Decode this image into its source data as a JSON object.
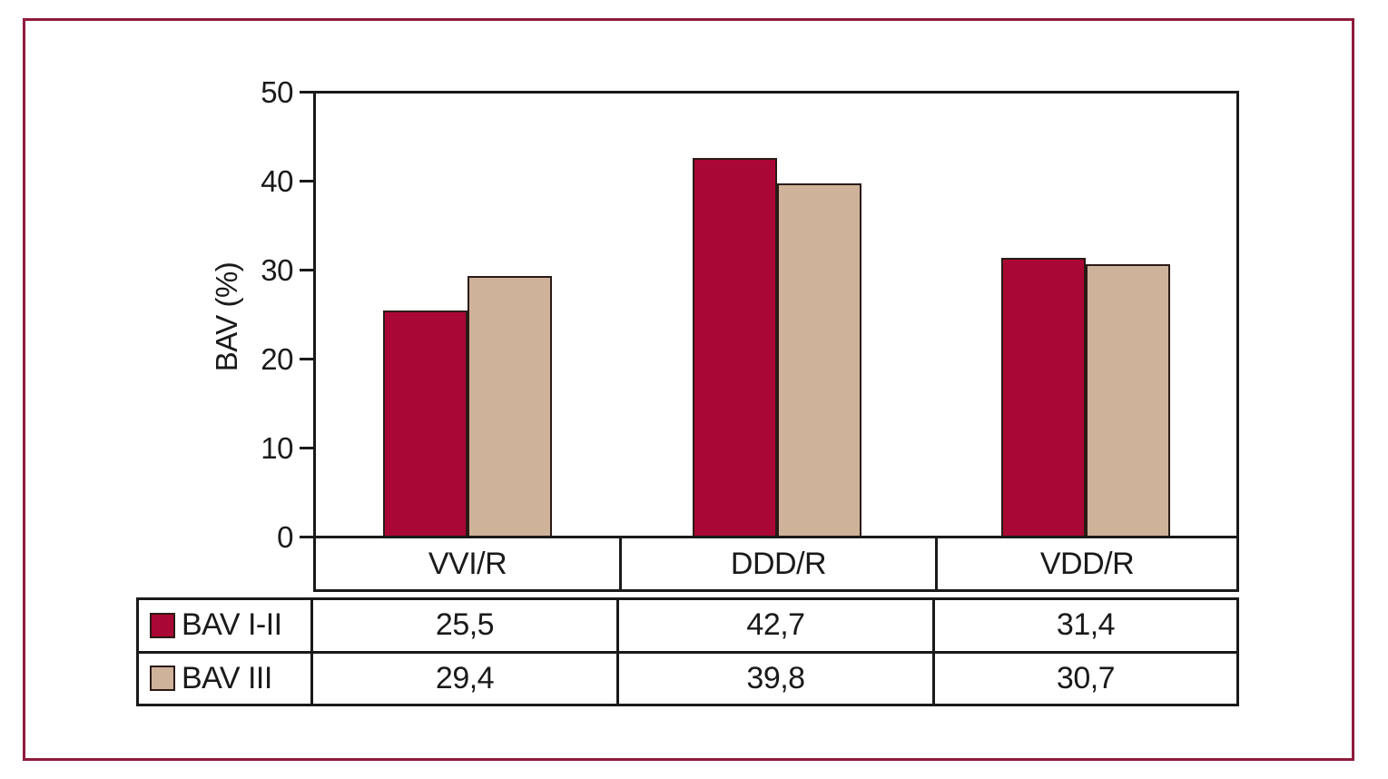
{
  "chart_data": {
    "type": "bar",
    "title": "",
    "xlabel": "",
    "ylabel": "BAV (%)",
    "ylim": [
      0,
      50
    ],
    "yticks": [
      0,
      10,
      20,
      30,
      40,
      50
    ],
    "grid": false,
    "legend_position": "table-below-chart",
    "categories": [
      "VVI/R",
      "DDD/R",
      "VDD/R"
    ],
    "series": [
      {
        "name": "BAV I-II",
        "color": "#a90734",
        "values": [
          25.5,
          42.7,
          31.4
        ],
        "value_labels": [
          "25,5",
          "42,7",
          "31,4"
        ]
      },
      {
        "name": "BAV III",
        "color": "#cfb29a",
        "values": [
          29.4,
          39.8,
          30.7
        ],
        "value_labels": [
          "29,4",
          "39,8",
          "30,7"
        ]
      }
    ]
  },
  "colors": {
    "frame_border": "#8e1b3c",
    "axis_line": "#1a1a1a",
    "bar_outline": "#2b1b17",
    "text": "#1a1a1a",
    "background": "#ffffff"
  }
}
